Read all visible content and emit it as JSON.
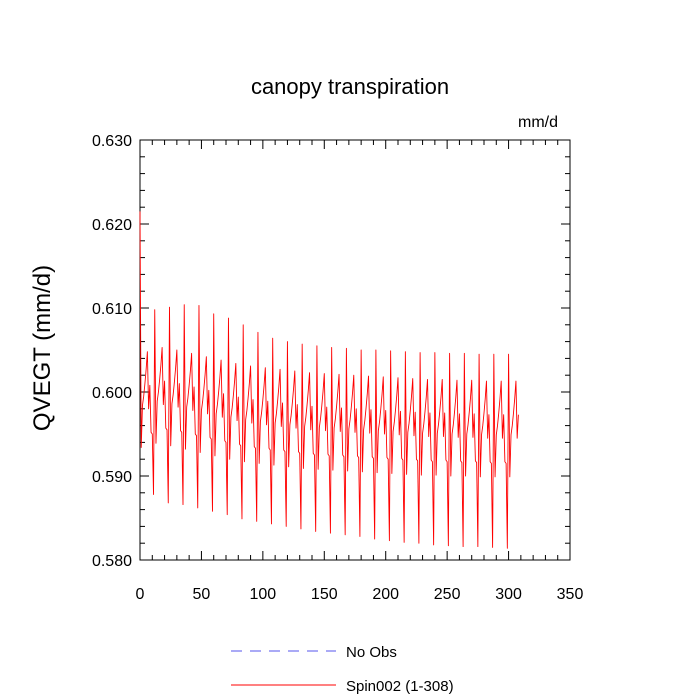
{
  "chart_data": {
    "type": "line",
    "title": "canopy transpiration",
    "units_label": "mm/d",
    "xlabel": "",
    "ylabel": "QVEGT  (mm/d)",
    "xlim": [
      0,
      350
    ],
    "ylim": [
      0.58,
      0.63
    ],
    "x_ticks": [
      "0",
      "50",
      "100",
      "150",
      "200",
      "250",
      "300",
      "350"
    ],
    "y_ticks": [
      "0.580",
      "0.590",
      "0.600",
      "0.610",
      "0.620",
      "0.630"
    ],
    "grid": false,
    "legend_position": "bottom",
    "cycle": {
      "period_months": 12,
      "years": 26,
      "x_end": 308,
      "first_point": 0.6215,
      "monthly_offsets": [
        0.0008,
        -0.0046,
        0.0004,
        0.0015,
        0.003,
        0.0047,
        0.0068,
        0.0,
        0.0028,
        -0.0028,
        -0.003,
        -0.0018
      ],
      "peak_envelope": [
        0.6082,
        0.6098,
        0.6101,
        0.6104,
        0.6103,
        0.6093,
        0.6088,
        0.608,
        0.6071,
        0.6064,
        0.606,
        0.6057,
        0.6055,
        0.6053,
        0.6052,
        0.605,
        0.605,
        0.6049,
        0.6048,
        0.6047,
        0.6047,
        0.6046,
        0.6046,
        0.6045,
        0.6045,
        0.6045
      ],
      "trough_envelope": [
        0.5878,
        0.5868,
        0.5866,
        0.5862,
        0.5858,
        0.5854,
        0.5849,
        0.5846,
        0.5843,
        0.584,
        0.5837,
        0.5834,
        0.5832,
        0.583,
        0.5828,
        0.5825,
        0.5823,
        0.5821,
        0.582,
        0.5818,
        0.5817,
        0.5816,
        0.5816,
        0.5815,
        0.5814,
        0.5812
      ],
      "midline": [
        0.598,
        0.5985,
        0.5982,
        0.5978,
        0.5974,
        0.597,
        0.5966,
        0.5963,
        0.5961,
        0.5959,
        0.5957,
        0.5955,
        0.5954,
        0.5953,
        0.5952,
        0.5951,
        0.595,
        0.5949,
        0.5948,
        0.5947,
        0.5947,
        0.5946,
        0.5946,
        0.5945,
        0.5945,
        0.5945
      ]
    },
    "series": [
      {
        "name": "No Obs",
        "color": "#5555ee",
        "dashed": true,
        "values": []
      },
      {
        "name": "Spin002 (1-308)",
        "color": "#ff0000",
        "dashed": false,
        "values": "generated from cycle"
      }
    ]
  },
  "legend": {
    "no_obs_label": "No Obs",
    "spin_label": "Spin002 (1-308)"
  }
}
